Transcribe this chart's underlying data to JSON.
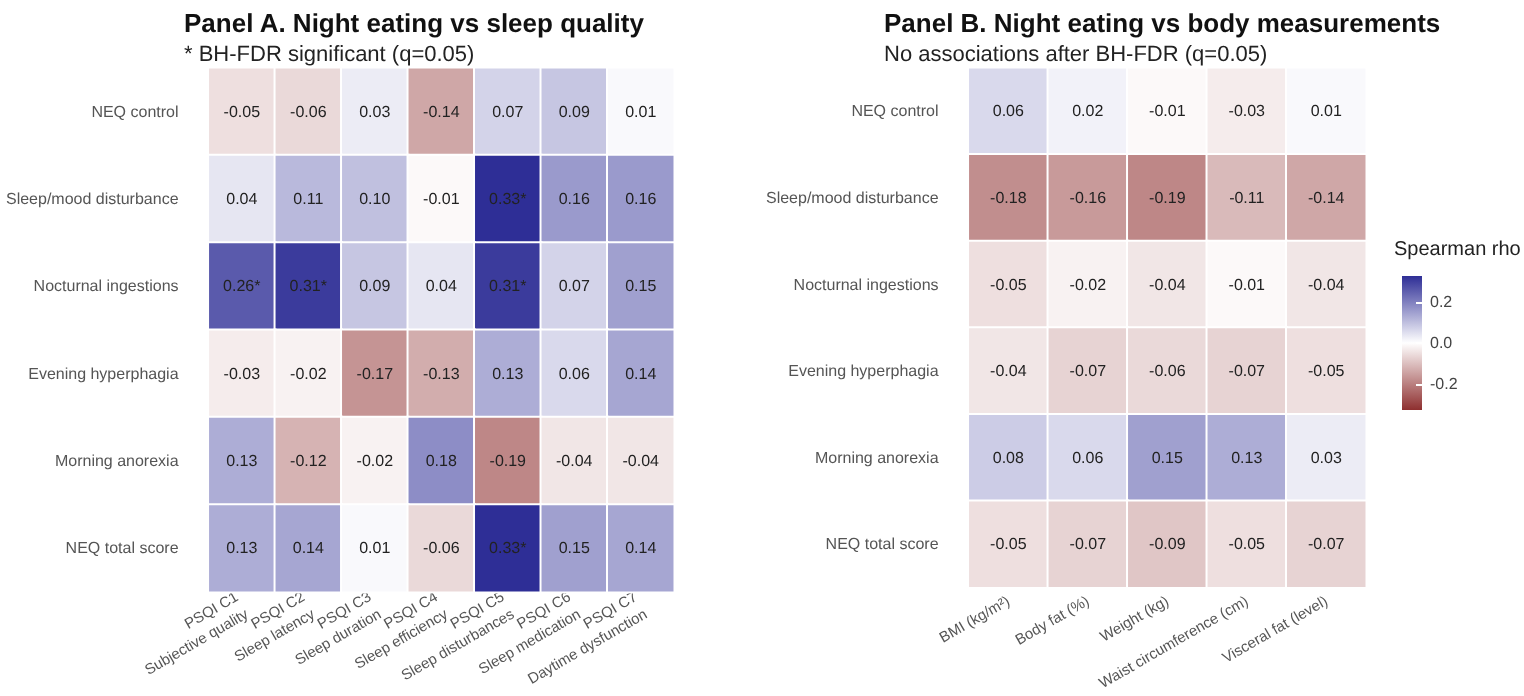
{
  "chart_data": [
    {
      "type": "heatmap",
      "title": "Panel A. Night eating vs sleep quality",
      "subtitle": "* BH-FDR significant (q=0.05)",
      "categories": [
        "PSQI C1\nSubjective quality",
        "PSQI C2\nSleep latency",
        "PSQI C3\nSleep duration",
        "PSQI C4\nSleep efficiency",
        "PSQI C5\nSleep disturbances",
        "PSQI C6\nSleep medication",
        "PSQI C7\nDaytime dysfunction"
      ],
      "y_categories": [
        "NEQ control",
        "Sleep/mood disturbance",
        "Nocturnal ingestions",
        "Evening hyperphagia",
        "Morning anorexia",
        "NEQ total score"
      ],
      "cells": [
        [
          -0.05,
          -0.06,
          0.03,
          -0.14,
          0.07,
          0.09,
          0.01
        ],
        [
          0.04,
          0.11,
          0.1,
          -0.01,
          0.33,
          0.16,
          0.16
        ],
        [
          0.26,
          0.31,
          0.09,
          0.04,
          0.31,
          0.07,
          0.15
        ],
        [
          -0.03,
          -0.02,
          -0.17,
          -0.13,
          0.13,
          0.06,
          0.14
        ],
        [
          0.13,
          -0.12,
          -0.02,
          0.18,
          -0.19,
          -0.04,
          -0.04
        ],
        [
          0.13,
          0.14,
          0.01,
          -0.06,
          0.33,
          0.15,
          0.14
        ]
      ],
      "cell_labels": [
        [
          "-0.05",
          "-0.06",
          "0.03",
          "-0.14",
          "0.07",
          "0.09",
          "0.01"
        ],
        [
          "0.04",
          "0.11",
          "0.10",
          "-0.01",
          "0.33*",
          "0.16",
          "0.16"
        ],
        [
          "0.26*",
          "0.31*",
          "0.09",
          "0.04",
          "0.31*",
          "0.07",
          "0.15"
        ],
        [
          "-0.03",
          "-0.02",
          "-0.17",
          "-0.13",
          "0.13",
          "0.06",
          "0.14"
        ],
        [
          "0.13",
          "-0.12",
          "-0.02",
          "0.18",
          "-0.19",
          "-0.04",
          "-0.04"
        ],
        [
          "0.13",
          "0.14",
          "0.01",
          "-0.06",
          "0.33*",
          "0.15",
          "0.14"
        ]
      ]
    },
    {
      "type": "heatmap",
      "title": "Panel B. Night eating vs body measurements",
      "subtitle": "No associations after BH-FDR (q=0.05)",
      "categories": [
        "BMI (kg/m²)",
        "Body fat (%)",
        "Weight (kg)",
        "Waist circumference (cm)",
        "Visceral fat (level)"
      ],
      "y_categories": [
        "NEQ control",
        "Sleep/mood disturbance",
        "Nocturnal ingestions",
        "Evening hyperphagia",
        "Morning anorexia",
        "NEQ total score"
      ],
      "cells": [
        [
          0.06,
          0.02,
          -0.01,
          -0.03,
          0.01
        ],
        [
          -0.18,
          -0.16,
          -0.19,
          -0.11,
          -0.14
        ],
        [
          -0.05,
          -0.02,
          -0.04,
          -0.01,
          -0.04
        ],
        [
          -0.04,
          -0.07,
          -0.06,
          -0.07,
          -0.05
        ],
        [
          0.08,
          0.06,
          0.15,
          0.13,
          0.03
        ],
        [
          -0.05,
          -0.07,
          -0.09,
          -0.05,
          -0.07
        ]
      ],
      "cell_labels": [
        [
          "0.06",
          "0.02",
          "-0.01",
          "-0.03",
          "0.01"
        ],
        [
          "-0.18",
          "-0.16",
          "-0.19",
          "-0.11",
          "-0.14"
        ],
        [
          "-0.05",
          "-0.02",
          "-0.04",
          "-0.01",
          "-0.04"
        ],
        [
          "-0.04",
          "-0.07",
          "-0.06",
          "-0.07",
          "-0.05"
        ],
        [
          "0.08",
          "0.06",
          "0.15",
          "0.13",
          "0.03"
        ],
        [
          "-0.05",
          "-0.07",
          "-0.09",
          "-0.05",
          "-0.07"
        ]
      ],
      "clim": [
        -0.33,
        0.33
      ],
      "clabel": "Spearman rho",
      "cticks": [
        {
          "value": -0.2,
          "label": "-0.2"
        },
        {
          "value": 0,
          "label": "0.0"
        },
        {
          "value": 0.2,
          "label": "0.2"
        }
      ]
    }
  ]
}
